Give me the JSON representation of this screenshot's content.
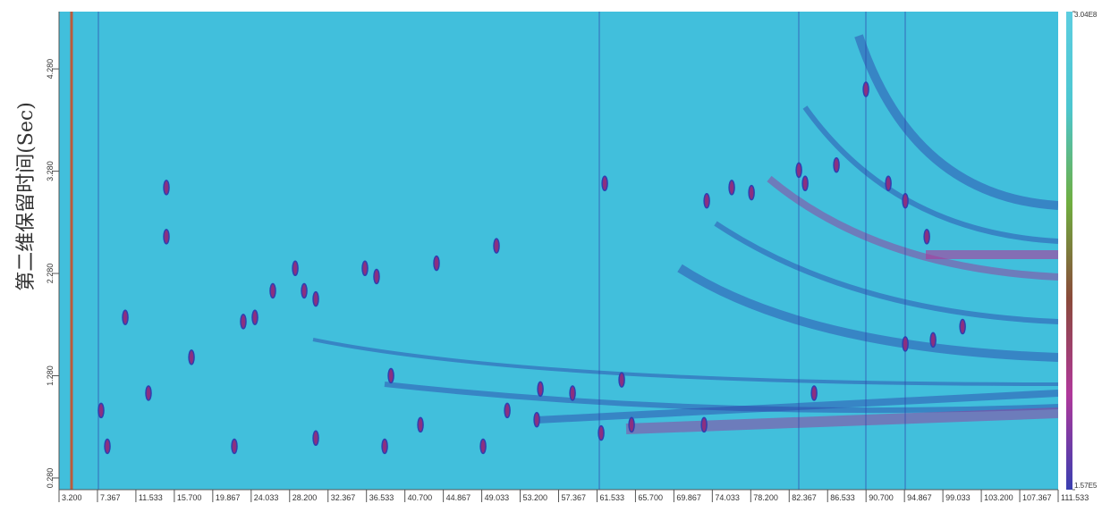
{
  "chart_data": {
    "type": "scatter",
    "ylabel": "第二维保留时间(Sec)",
    "xlim": [
      3.2,
      111.533
    ],
    "ylim": [
      0.166,
      4.84
    ],
    "xticks": [
      {
        "value": 3.2,
        "label": "3.200"
      },
      {
        "value": 7.367,
        "label": "7.367"
      },
      {
        "value": 11.533,
        "label": "11.533"
      },
      {
        "value": 15.7,
        "label": "15.700"
      },
      {
        "value": 19.867,
        "label": "19.867"
      },
      {
        "value": 24.033,
        "label": "24.033"
      },
      {
        "value": 28.2,
        "label": "28.200"
      },
      {
        "value": 32.367,
        "label": "32.367"
      },
      {
        "value": 36.533,
        "label": "36.533"
      },
      {
        "value": 40.7,
        "label": "40.700"
      },
      {
        "value": 44.867,
        "label": "44.867"
      },
      {
        "value": 49.033,
        "label": "49.033"
      },
      {
        "value": 53.2,
        "label": "53.200"
      },
      {
        "value": 57.367,
        "label": "57.367"
      },
      {
        "value": 61.533,
        "label": "61.533"
      },
      {
        "value": 65.7,
        "label": "65.700"
      },
      {
        "value": 69.867,
        "label": "69.867"
      },
      {
        "value": 74.033,
        "label": "74.033"
      },
      {
        "value": 78.2,
        "label": "78.200"
      },
      {
        "value": 82.367,
        "label": "82.367"
      },
      {
        "value": 86.533,
        "label": "86.533"
      },
      {
        "value": 90.7,
        "label": "90.700"
      },
      {
        "value": 94.867,
        "label": "94.867"
      },
      {
        "value": 99.033,
        "label": "99.033"
      },
      {
        "value": 103.2,
        "label": "103.200"
      },
      {
        "value": 107.367,
        "label": "107.367"
      },
      {
        "value": 111.533,
        "label": "111.533"
      }
    ],
    "yticks": [
      {
        "value": 0.28,
        "label": "0.280"
      },
      {
        "value": 1.28,
        "label": "1.280"
      },
      {
        "value": 2.28,
        "label": "2.280"
      },
      {
        "value": 3.28,
        "label": "3.280"
      },
      {
        "value": 4.28,
        "label": "4.280"
      }
    ],
    "background": "#41bfdc",
    "color": "#8c2f80",
    "x": [
      14.84,
      14.84,
      10.38,
      12.9,
      22.21,
      23.18,
      24.44,
      26.38,
      29.78,
      31.04,
      31.04,
      36.37,
      37.63,
      39.19,
      44.13,
      50.63,
      51.8,
      49.18,
      55.39,
      62.37,
      61.98,
      65.28,
      73.43,
      76.14,
      78.28,
      83.42,
      84.1,
      87.49,
      93.12,
      94.96,
      97.29,
      101.17,
      97.97,
      94.96,
      85.07,
      73.14,
      64.21,
      58.88,
      55.0,
      42.39,
      38.51,
      28.81,
      17.56,
      8.44,
      7.76,
      90.69
    ],
    "values": [
      3.12,
      2.64,
      1.85,
      1.11,
      0.59,
      1.81,
      1.85,
      2.11,
      2.11,
      2.03,
      0.67,
      2.33,
      2.25,
      1.28,
      2.38,
      2.55,
      0.94,
      0.59,
      1.15,
      3.16,
      0.72,
      0.8,
      2.99,
      3.12,
      3.07,
      3.29,
      3.16,
      3.34,
      3.16,
      2.99,
      2.64,
      1.76,
      1.63,
      1.59,
      1.11,
      0.8,
      1.24,
      1.11,
      0.85,
      0.8,
      0.59,
      2.33,
      1.46,
      0.59,
      0.94,
      4.08
    ],
    "colorbar": {
      "clim": [
        157000,
        304000000
      ],
      "ticks": [
        {
          "value": 304000000,
          "label": "3.04E8"
        },
        {
          "value": 157000,
          "label": "1.57E5"
        }
      ],
      "colors": [
        "#3a3fb0",
        "#b0389a",
        "#8a4a3a",
        "#6fae3f",
        "#4cc6d0",
        "#5ccde0"
      ]
    }
  }
}
